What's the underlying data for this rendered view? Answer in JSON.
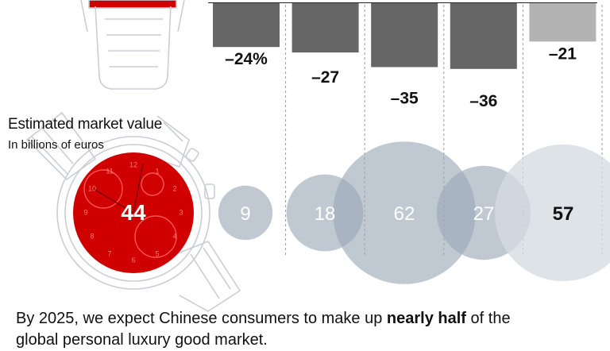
{
  "heading": "Estimated market value",
  "subheading": "In billions of euros",
  "caption": {
    "before": "By 2025, we expect Chinese consumers to make up",
    "bold": "nearly half",
    "after": "of the",
    "line2": "global personal luxury good market."
  },
  "watch_face_numerals": [
    "12",
    "1",
    "2",
    "3",
    "4",
    "5",
    "6",
    "7",
    "8",
    "9",
    "10",
    "11"
  ],
  "colors": {
    "decline_bar": "#666666",
    "decline_bar_light": "#b3b3b3",
    "bubble": "#9aa8b6",
    "bubble_light": "#d5dbe2",
    "watch_red": "#d00000",
    "watch_outline": "#c9ced6"
  },
  "chart_data": [
    {
      "type": "bar",
      "categories": [
        "",
        "",
        "",
        "",
        ""
      ],
      "values": [
        -24,
        -27,
        -35,
        -36,
        -21
      ],
      "labels": [
        "–24%",
        "–27",
        "–35",
        "–36",
        "–21"
      ],
      "highlight_last": true
    },
    {
      "type": "scatter",
      "title": "Estimated market value",
      "subtitle": "In billions of euros",
      "values": [
        44,
        9,
        18,
        62,
        27,
        57
      ],
      "labels": [
        "44",
        "9",
        "18",
        "62",
        "27",
        "57"
      ]
    }
  ]
}
